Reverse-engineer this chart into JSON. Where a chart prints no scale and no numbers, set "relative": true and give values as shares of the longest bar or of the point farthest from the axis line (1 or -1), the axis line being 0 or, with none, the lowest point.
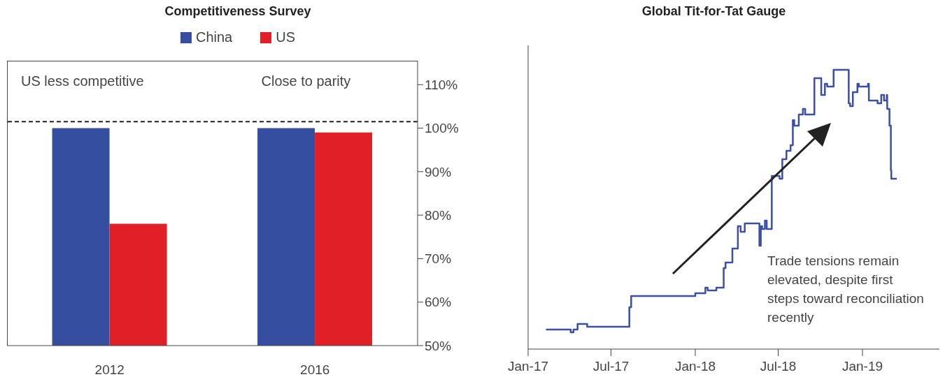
{
  "chart_data": [
    {
      "type": "bar",
      "title": "Competitiveness Survey",
      "categories": [
        "2012",
        "2016"
      ],
      "series": [
        {
          "name": "China",
          "color": "#364ea0",
          "values": [
            100,
            100
          ]
        },
        {
          "name": "US",
          "color": "#e01f26",
          "values": [
            78,
            99
          ]
        }
      ],
      "ylim": [
        50,
        115.5
      ],
      "yticks": [
        {
          "value": 50,
          "label": "50%"
        },
        {
          "value": 60,
          "label": "60%"
        },
        {
          "value": 70,
          "label": "70%"
        },
        {
          "value": 80,
          "label": "80%"
        },
        {
          "value": 90,
          "label": "90%"
        },
        {
          "value": 100,
          "label": "100%"
        },
        {
          "value": 110,
          "label": "110%"
        }
      ],
      "ref_lines": [
        {
          "axis": "y",
          "value": 101.5,
          "color": "#222222",
          "line_style": "dashed"
        }
      ],
      "legend": "top",
      "annotations": [
        "US less competitive",
        "Close to parity"
      ]
    },
    {
      "type": "step",
      "title": "Global Tit-for-Tat Gauge",
      "relative": true,
      "x": [
        "2017-02-09",
        "2017-04-04",
        "2017-04-10",
        "2017-04-19",
        "2017-05-10",
        "2017-08-10",
        "2017-08-14",
        "2018-01-01",
        "2018-01-23",
        "2018-01-28",
        "2018-02-16",
        "2018-03-04",
        "2018-03-08",
        "2018-03-23",
        "2018-04-04",
        "2018-04-10",
        "2018-04-19",
        "2018-05-21",
        "2018-05-24",
        "2018-05-27",
        "2018-06-02",
        "2018-06-06",
        "2018-06-17",
        "2018-07-04",
        "2018-07-10",
        "2018-07-19",
        "2018-07-28",
        "2018-08-02",
        "2018-08-05",
        "2018-08-15",
        "2018-08-24",
        "2018-08-29",
        "2018-09-18",
        "2018-10-03",
        "2018-10-11",
        "2018-10-16",
        "2018-10-30",
        "2018-12-02",
        "2018-12-05",
        "2018-12-11",
        "2018-12-21",
        "2018-12-24",
        "2019-01-13",
        "2019-01-15",
        "2019-02-03",
        "2019-02-11",
        "2019-02-17",
        "2019-02-23",
        "2019-02-24",
        "2019-03-01",
        "2019-03-04",
        "2019-03-05",
        "2019-03-17"
      ],
      "series": [
        {
          "color": "#3a4fa5",
          "values": [
            0.07,
            0.06,
            0.07,
            0.09,
            0.08,
            0.15,
            0.19,
            0.2,
            0.22,
            0.21,
            0.22,
            0.29,
            0.31,
            0.36,
            0.44,
            0.42,
            0.45,
            0.37,
            0.44,
            0.43,
            0.46,
            0.43,
            0.62,
            0.61,
            0.68,
            0.71,
            0.73,
            0.82,
            0.8,
            0.84,
            0.86,
            0.84,
            0.97,
            0.91,
            0.95,
            0.94,
            1,
            0.88,
            0.87,
            0.92,
            0.95,
            0.94,
            0.95,
            0.89,
            0.88,
            0.91,
            0.89,
            0.91,
            0.86,
            0.8,
            0.64,
            0.61,
            0.61
          ]
        }
      ],
      "xlim": [
        "2017-01-01",
        "2019-06-18"
      ],
      "xticks": [
        {
          "value": "2017-01-01",
          "label": "Jan-17"
        },
        {
          "value": "2017-07-01",
          "label": "Jul-17"
        },
        {
          "value": "2018-01-01",
          "label": "Jan-18"
        },
        {
          "value": "2018-07-01",
          "label": "Jul-18"
        },
        {
          "value": "2019-01-01",
          "label": "Jan-19"
        }
      ],
      "annotations": [
        "Trade tensions remain elevated, despite first steps toward reconciliation recently"
      ]
    }
  ]
}
